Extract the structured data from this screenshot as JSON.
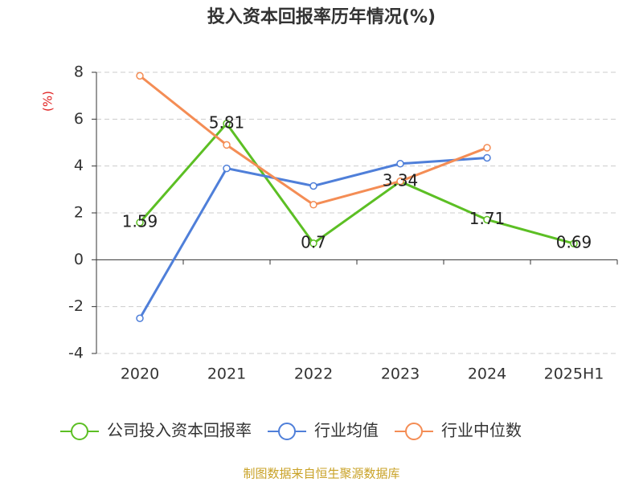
{
  "chart_data": {
    "type": "line",
    "title": "投入资本回报率历年情况(%)",
    "y_label": "(%)",
    "categories": [
      "2020",
      "2021",
      "2022",
      "2023",
      "2024",
      "2025H1"
    ],
    "series": [
      {
        "name": "公司投入资本回报率",
        "color": "#5cbf24",
        "values": [
          1.59,
          5.81,
          0.7,
          3.34,
          1.71,
          0.69
        ],
        "show_labels": true
      },
      {
        "name": "行业均值",
        "color": "#4f7fd9",
        "values": [
          -2.5,
          3.9,
          3.15,
          4.1,
          4.35,
          null
        ]
      },
      {
        "name": "行业中位数",
        "color": "#f48d55",
        "values": [
          7.85,
          4.9,
          2.35,
          3.35,
          4.78,
          null
        ]
      }
    ],
    "ylim": [
      -4,
      8
    ],
    "yticks": [
      -4,
      -2,
      0,
      2,
      4,
      6,
      8
    ],
    "grid": true,
    "source": "制图数据来自恒生聚源数据库"
  }
}
